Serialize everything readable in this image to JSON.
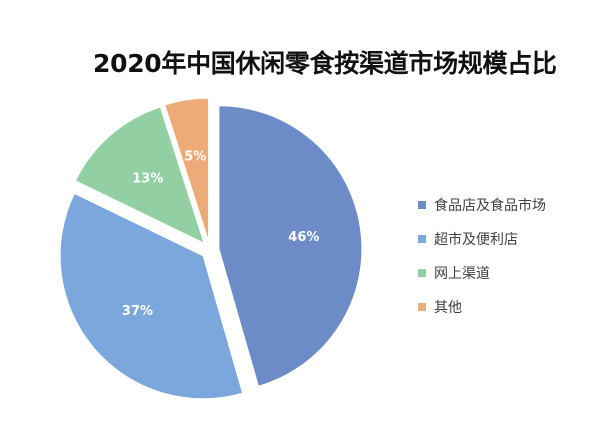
{
  "chart_data": {
    "type": "pie",
    "title": "2020年中国休闲零食按渠道市场规模占比",
    "categories": [
      "食品店及食品市场",
      "超市及便利店",
      "网上渠道",
      "其他"
    ],
    "values": [
      46,
      37,
      13,
      5
    ],
    "data_labels": [
      "46%",
      "37%",
      "13%",
      "5%"
    ],
    "colors": [
      "#6c8bc7",
      "#7ba7dc",
      "#92d0a4",
      "#eeab7a"
    ],
    "exploded": true,
    "legend_position": "right"
  }
}
